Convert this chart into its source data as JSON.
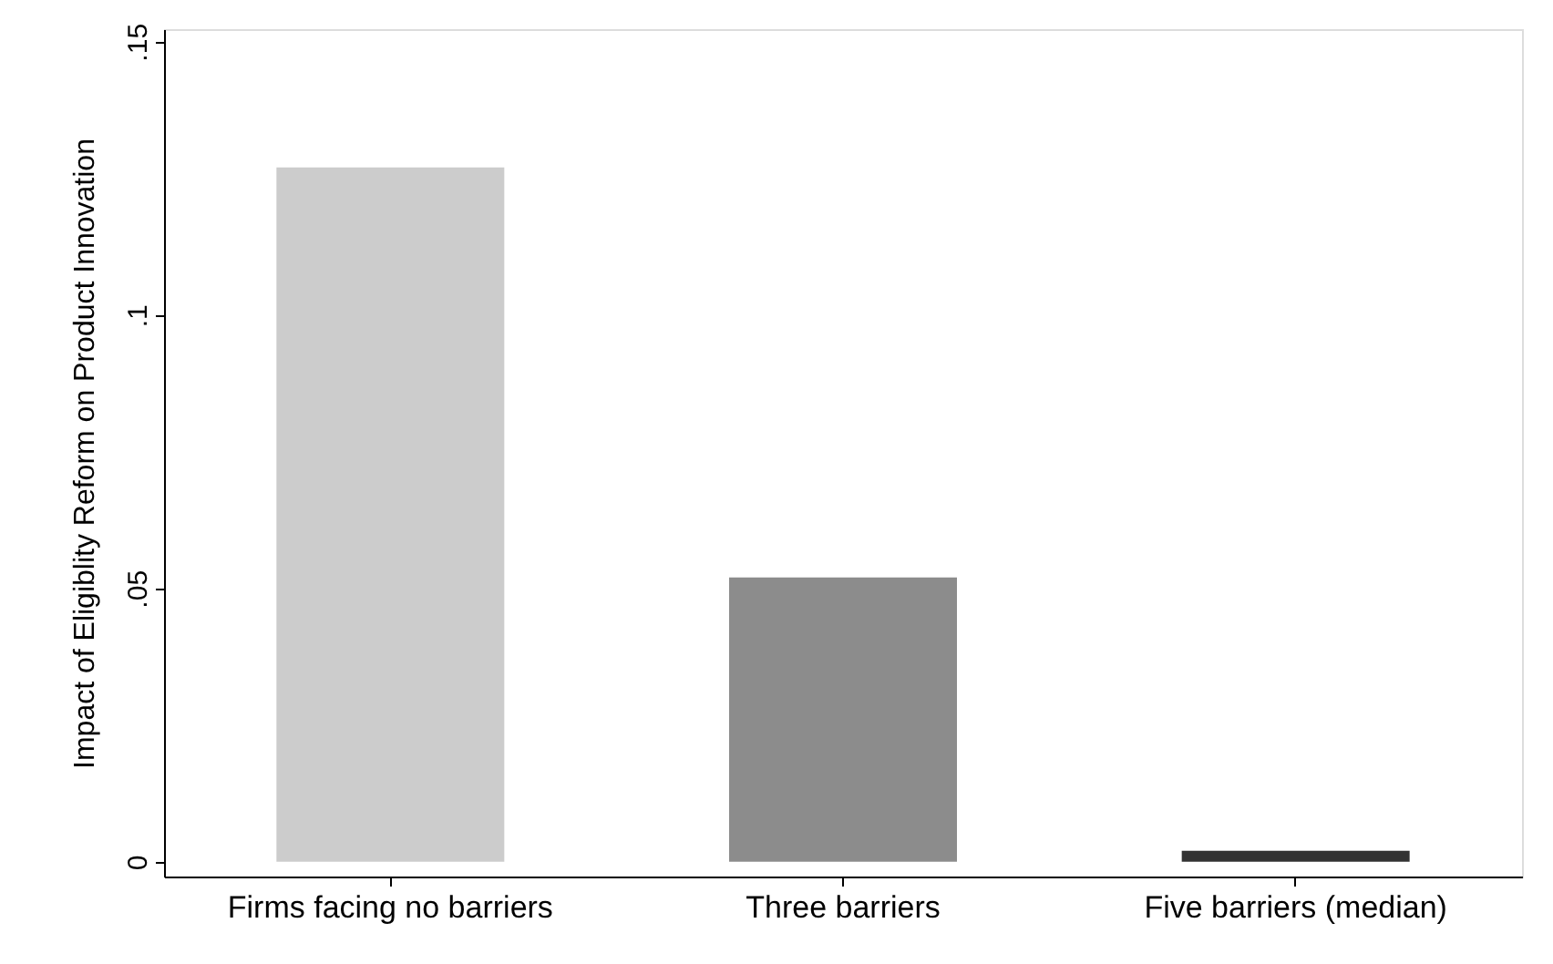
{
  "chart_data": {
    "type": "bar",
    "ylabel": "Impact of Eligiblity Reform on Product Innovation",
    "categories": [
      "Firms facing no barriers",
      "Three barriers",
      "Five barriers (median)"
    ],
    "values": [
      0.127,
      0.052,
      0.002
    ],
    "colors": [
      "#cccccc",
      "#8c8c8c",
      "#333333"
    ],
    "ylim": [
      -0.0027,
      0.1523
    ],
    "yticks": [
      0,
      {
        "value": 0.05,
        "label": ".05"
      },
      {
        "value": 0.1,
        "label": ".1"
      },
      {
        "value": 0.15,
        "label": ".15"
      }
    ],
    "grid": false
  }
}
